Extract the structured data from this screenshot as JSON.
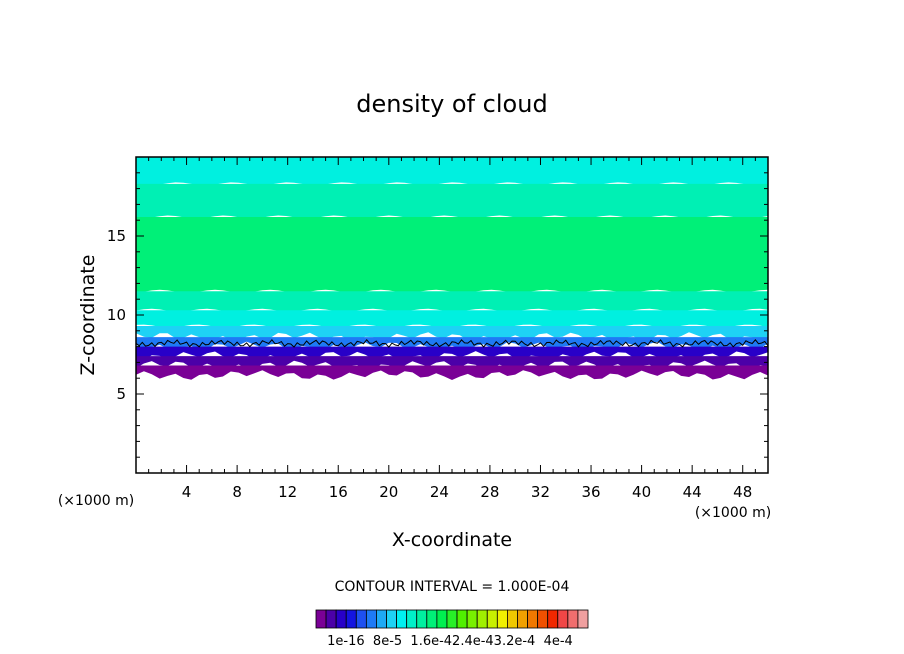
{
  "chart_data": {
    "type": "heatmap",
    "title": "density of cloud",
    "xlabel": "X-coordinate",
    "ylabel": "Z-coordinate",
    "x_unit_left": "(×1000 m)",
    "x_unit_right": "(×1000 m)",
    "xlim": [
      0,
      50
    ],
    "ylim": [
      0,
      20
    ],
    "xticks": [
      4,
      8,
      12,
      16,
      20,
      24,
      28,
      32,
      36,
      40,
      44,
      48
    ],
    "xtick_labels": [
      "4",
      "8",
      "12",
      "16",
      "20",
      "24",
      "28",
      "32",
      "36",
      "40",
      "44",
      "48"
    ],
    "yticks": [
      5,
      10,
      15
    ],
    "ytick_labels": [
      "5",
      "10",
      "15"
    ],
    "contour_interval_label": "CONTOUR INTERVAL = 1.000E-04",
    "colorbar_labels": [
      "1e-16",
      "8e-5",
      "1.6e-4",
      "2.4e-4",
      "3.2e-4",
      "4e-4"
    ],
    "colorbar_label_text": "1e-16  8e-5  1.6e-42.4e-43.2e-4  4e-4",
    "colorbar_colors": [
      "#7a0096",
      "#4b00a8",
      "#2800c8",
      "#1414e0",
      "#1e50f0",
      "#1e7af5",
      "#1eaaf5",
      "#1ed2f5",
      "#00f0f0",
      "#00f0c8",
      "#00f0a0",
      "#00f078",
      "#00f050",
      "#28f028",
      "#50f000",
      "#78f000",
      "#a0f000",
      "#c8f000",
      "#f0f000",
      "#f0c800",
      "#f0a000",
      "#f07800",
      "#f05000",
      "#f02800",
      "#f04646",
      "#f06e6e",
      "#f0a0a0"
    ],
    "vertical_bands": [
      {
        "z_top": 20.0,
        "z_bottom": 18.3,
        "color": "#00f0e0"
      },
      {
        "z_top": 18.3,
        "z_bottom": 16.2,
        "color": "#00f0b4"
      },
      {
        "z_top": 16.2,
        "z_bottom": 11.5,
        "color": "#00f078"
      },
      {
        "z_top": 11.5,
        "z_bottom": 10.3,
        "color": "#00f0b4"
      },
      {
        "z_top": 10.3,
        "z_bottom": 9.3,
        "color": "#00f0e0"
      },
      {
        "z_top": 9.3,
        "z_bottom": 8.6,
        "color": "#1ed2f5"
      },
      {
        "z_top": 8.6,
        "z_bottom": 8.0,
        "color": "#1e7af5"
      },
      {
        "z_top": 8.0,
        "z_bottom": 7.4,
        "color": "#2800c8"
      },
      {
        "z_top": 7.4,
        "z_bottom": 6.8,
        "color": "#4b00a8"
      },
      {
        "z_top": 6.8,
        "z_bottom": 6.2,
        "color": "#7a0096"
      }
    ],
    "contour_line_z": 8.2,
    "grid": false,
    "legend": "bottom"
  }
}
